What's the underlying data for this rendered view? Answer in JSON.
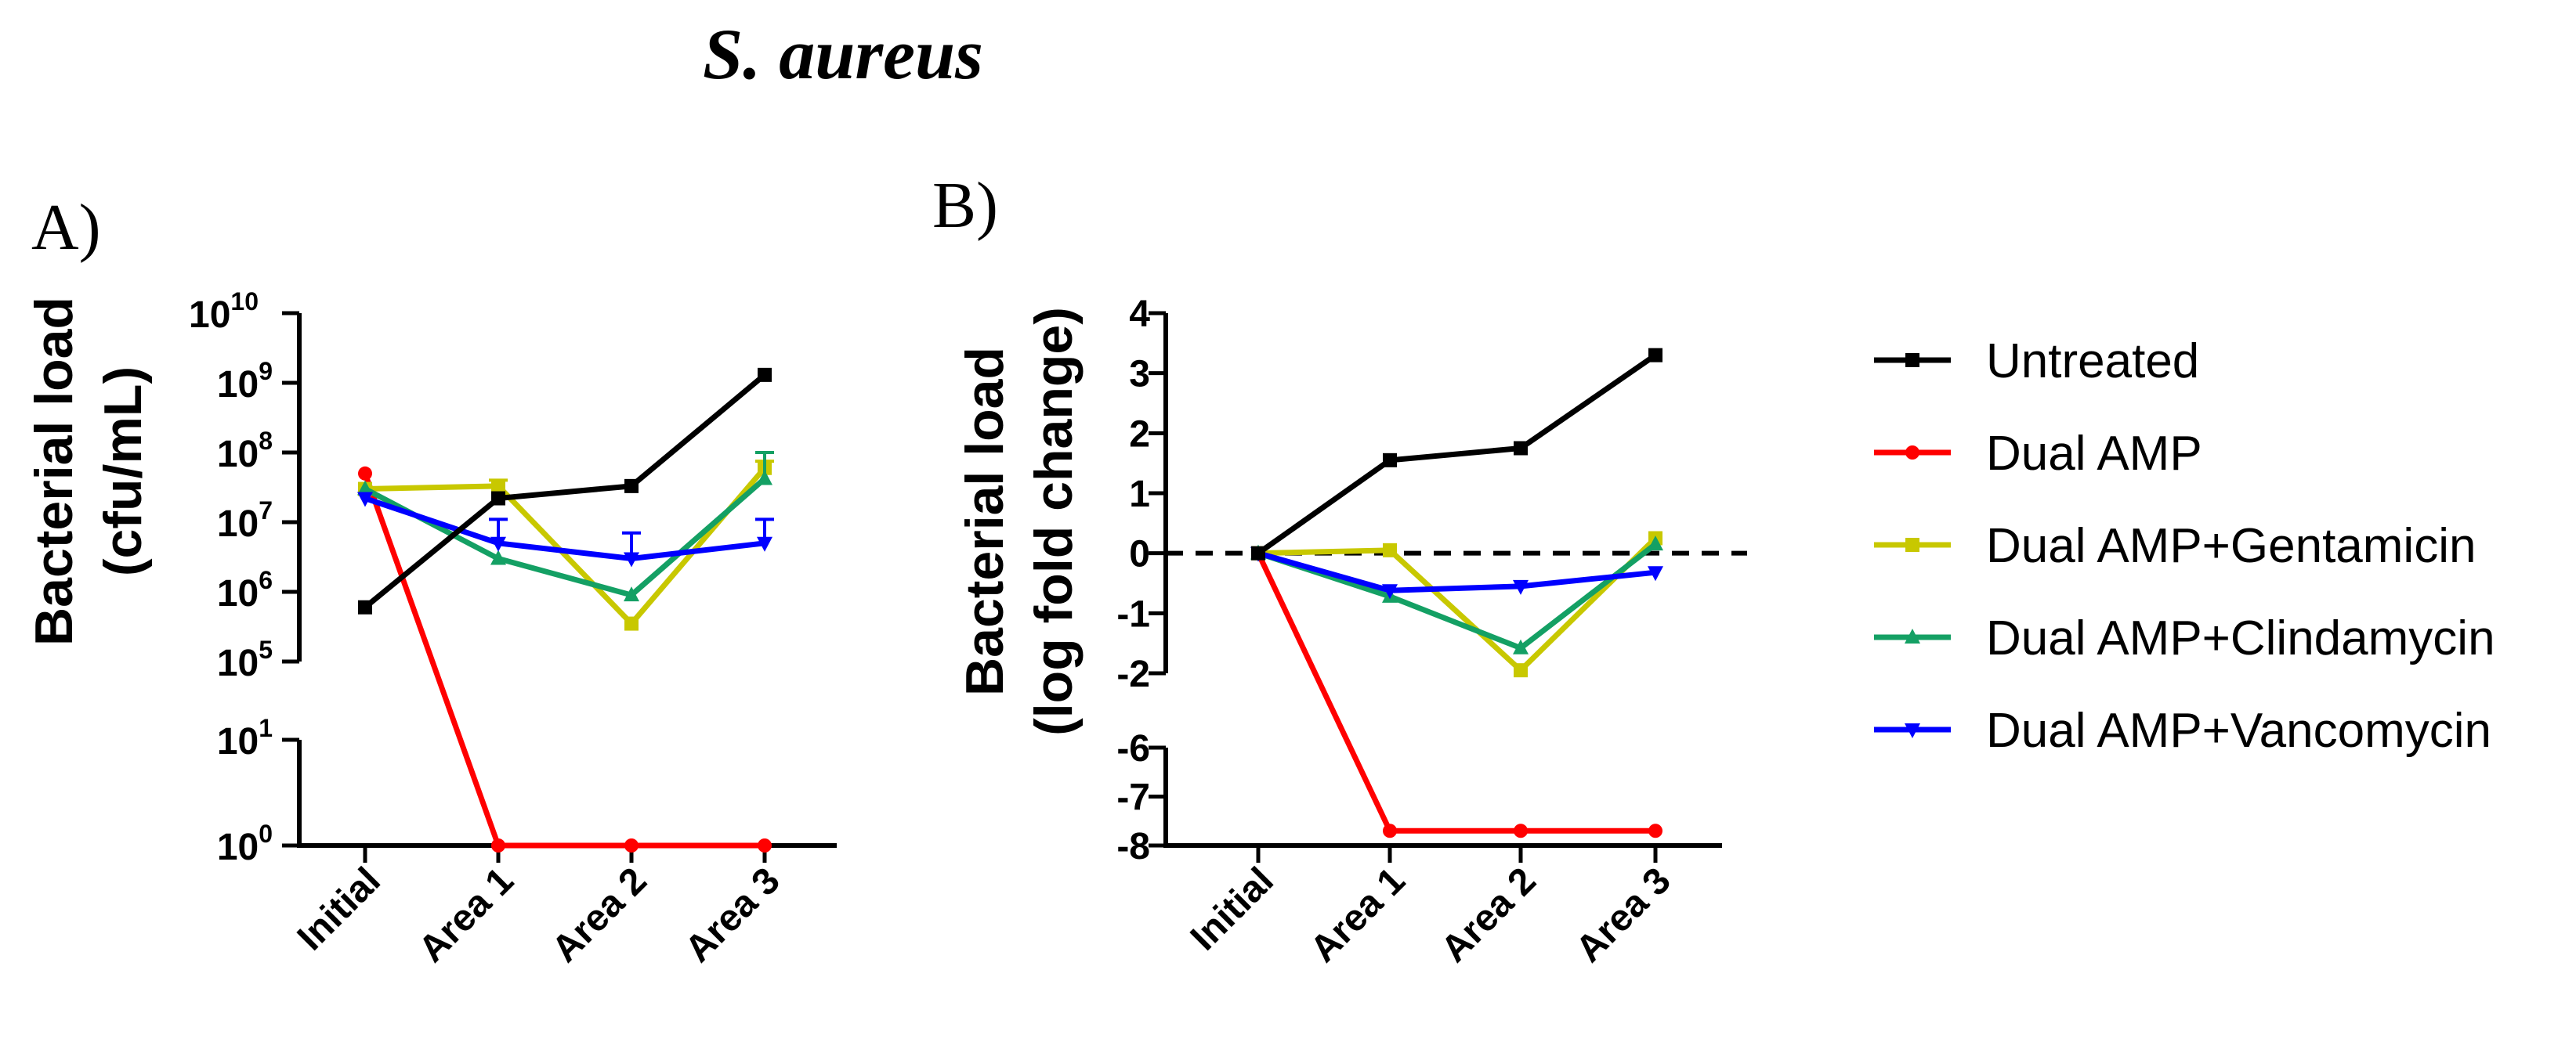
{
  "figure": {
    "title": "S. aureus"
  },
  "chart_data": [
    {
      "panel": "A)",
      "type": "line",
      "ylabel_line1": "Bacterial load",
      "ylabel_line2": "(cfu/mL)",
      "yscale": "log10",
      "y_axis_break": [
        1,
        100000
      ],
      "ylim_upper": [
        100000,
        10000000000
      ],
      "ylim_lower": [
        1,
        10
      ],
      "yticks_upper": [
        {
          "base": "10",
          "exp": "10"
        },
        {
          "base": "10",
          "exp": "9"
        },
        {
          "base": "10",
          "exp": "8"
        },
        {
          "base": "10",
          "exp": "7"
        },
        {
          "base": "10",
          "exp": "6"
        },
        {
          "base": "10",
          "exp": "5"
        }
      ],
      "yticks_lower": [
        {
          "base": "10",
          "exp": "1"
        },
        {
          "base": "10",
          "exp": "0"
        }
      ],
      "categories": [
        "Initial",
        "Area 1",
        "Area 2",
        "Area 3"
      ],
      "series": [
        {
          "name": "Untreated",
          "color": "#000000",
          "marker": "square",
          "values": [
            600000,
            22000000,
            33000000,
            1300000000
          ]
        },
        {
          "name": "Dual AMP",
          "color": "#ff0000",
          "marker": "circle",
          "values": [
            50000000,
            1,
            1,
            1
          ]
        },
        {
          "name": "Dual AMP+Gentamicin",
          "color": "#c8c800",
          "marker": "square",
          "values": [
            30000000,
            33000000,
            350000,
            60000000
          ],
          "err_high": [
            null,
            40000000,
            null,
            75000000
          ]
        },
        {
          "name": "Dual AMP+Clindamycin",
          "color": "#14a064",
          "marker": "triangle-up",
          "values": [
            30000000,
            3000000,
            900000,
            42000000
          ],
          "err_high": [
            null,
            null,
            null,
            100000000
          ]
        },
        {
          "name": "Dual AMP+Vancomycin",
          "color": "#0000ff",
          "marker": "triangle-down",
          "values": [
            22000000,
            5000000,
            3000000,
            5000000
          ],
          "err_high": [
            null,
            11000000,
            7000000,
            11000000
          ]
        }
      ]
    },
    {
      "panel": "B)",
      "type": "line",
      "ylabel_line1": "Bacterial load",
      "ylabel_line2": "(log fold change)",
      "yscale": "linear",
      "y_axis_break": [
        -6,
        -2
      ],
      "ylim_upper": [
        -2,
        4
      ],
      "ylim_lower": [
        -8,
        -6
      ],
      "yticks_upper": [
        "4",
        "3",
        "2",
        "1",
        "0",
        "-1",
        "-2"
      ],
      "yticks_lower": [
        "-6",
        "-7",
        "-8"
      ],
      "reference_line": {
        "y": 0,
        "style": "dashed"
      },
      "categories": [
        "Initial",
        "Area 1",
        "Area 2",
        "Area 3"
      ],
      "series": [
        {
          "name": "Untreated",
          "color": "#000000",
          "marker": "square",
          "values": [
            0,
            1.55,
            1.75,
            3.3
          ]
        },
        {
          "name": "Dual AMP",
          "color": "#ff0000",
          "marker": "circle",
          "values": [
            0,
            -7.7,
            -7.7,
            -7.7
          ]
        },
        {
          "name": "Dual AMP+Gentamicin",
          "color": "#c8c800",
          "marker": "square",
          "values": [
            0,
            0.05,
            -1.95,
            0.25
          ]
        },
        {
          "name": "Dual AMP+Clindamycin",
          "color": "#14a064",
          "marker": "triangle-up",
          "values": [
            0,
            -0.72,
            -1.58,
            0.15
          ]
        },
        {
          "name": "Dual AMP+Vancomycin",
          "color": "#0000ff",
          "marker": "triangle-down",
          "values": [
            0,
            -0.62,
            -0.55,
            -0.32
          ]
        }
      ]
    }
  ],
  "legend": {
    "placement": "right",
    "entries": [
      {
        "label": "Untreated",
        "color": "#000000",
        "marker": "square"
      },
      {
        "label": "Dual AMP",
        "color": "#ff0000",
        "marker": "circle"
      },
      {
        "label": "Dual AMP+Gentamicin",
        "color": "#c8c800",
        "marker": "square"
      },
      {
        "label": "Dual AMP+Clindamycin",
        "color": "#14a064",
        "marker": "triangle-up"
      },
      {
        "label": "Dual AMP+Vancomycin",
        "color": "#0000ff",
        "marker": "triangle-down"
      }
    ]
  }
}
